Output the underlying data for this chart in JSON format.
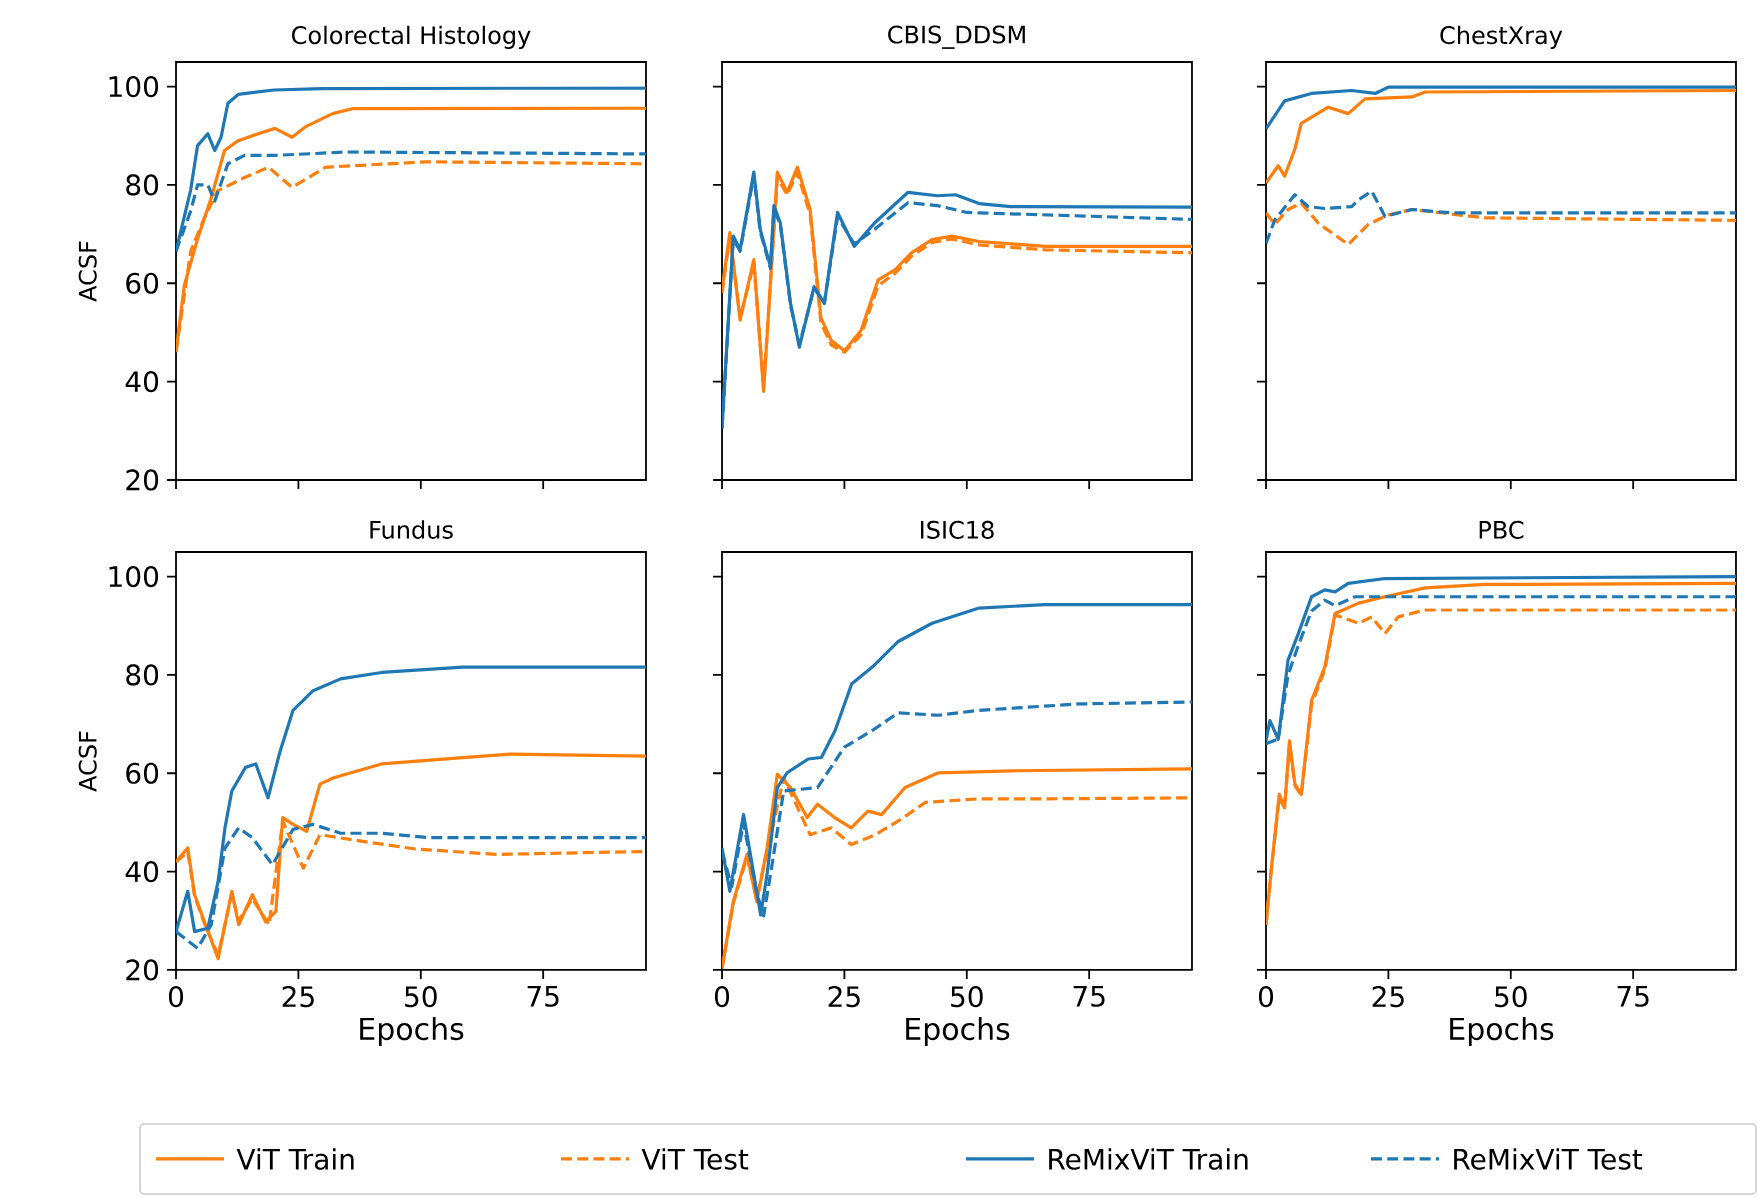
{
  "chart_data": [
    {
      "type": "line",
      "title": "Colorectal Histology",
      "ylabel": "ACSF",
      "xlim": [
        0,
        96
      ],
      "ylim": [
        20,
        105
      ],
      "xticks": [
        0,
        25,
        50,
        75
      ],
      "yticks": [
        20,
        40,
        60,
        80,
        100
      ],
      "tick_labels": "y",
      "legend": "bottom",
      "series": [
        {
          "name": "ViT Train",
          "color": "#ff7f0e",
          "line_style": "solid",
          "x": [
            0,
            1.7,
            4.4,
            7.2,
            9.9,
            12.7,
            16.8,
            20.2,
            23.7,
            26.4,
            32,
            36,
            96
          ],
          "values": [
            46,
            59.6,
            69,
            77.4,
            87,
            89,
            90.4,
            91.5,
            89.7,
            91.8,
            94.5,
            95.5,
            95.6
          ]
        },
        {
          "name": "ViT Test",
          "color": "#ff7f0e",
          "line_style": "dashed",
          "x": [
            0,
            3,
            5.8,
            8.5,
            14,
            18.9,
            23.7,
            30.6,
            51,
            96
          ],
          "values": [
            46,
            66.5,
            73.3,
            78.8,
            81.5,
            83.6,
            79.5,
            83.6,
            84.7,
            84.3
          ]
        },
        {
          "name": "ReMixViT Train",
          "color": "#1f77b4",
          "line_style": "solid",
          "x": [
            0,
            3,
            4.4,
            6.5,
            7.9,
            9.2,
            10.6,
            12.7,
            20,
            30,
            96
          ],
          "values": [
            66.5,
            79,
            88,
            90.4,
            87,
            89.7,
            96.6,
            98.4,
            99.3,
            99.6,
            99.7
          ]
        },
        {
          "name": "ReMixViT Test",
          "color": "#1f77b4",
          "line_style": "dashed",
          "x": [
            0,
            3,
            4.4,
            6.5,
            7.9,
            10.6,
            14,
            20,
            35,
            96
          ],
          "values": [
            66.5,
            74.7,
            80,
            80,
            76.7,
            84.3,
            86,
            86,
            86.7,
            86.3
          ]
        }
      ]
    },
    {
      "type": "line",
      "title": "CBIS_DDSM",
      "xlim": [
        0,
        96
      ],
      "ylim": [
        20,
        105
      ],
      "xticks": [
        0,
        25,
        50,
        75
      ],
      "yticks": [
        20,
        40,
        60,
        80,
        100
      ],
      "tick_labels": false,
      "legend": "bottom",
      "series": [
        {
          "name": "ViT Train",
          "color": "#ff7f0e",
          "line_style": "solid",
          "x": [
            0,
            1.6,
            3.7,
            6.5,
            8.5,
            11.3,
            13.3,
            15.4,
            18,
            20.2,
            22.3,
            25,
            28.4,
            31.9,
            35.3,
            38.7,
            42.9,
            47,
            52.5,
            66,
            96
          ],
          "values": [
            58.6,
            70.3,
            52.5,
            64.8,
            38,
            82.6,
            78.5,
            83.6,
            75,
            53,
            48.4,
            46.3,
            50.4,
            60.7,
            62.7,
            66.2,
            68.9,
            69.6,
            68.5,
            67.5,
            67.5
          ]
        },
        {
          "name": "ViT Test",
          "color": "#ff7f0e",
          "line_style": "dashed",
          "x": [
            0,
            1.6,
            3.7,
            6.5,
            8.5,
            11.3,
            13.3,
            15.4,
            18,
            20.2,
            22.3,
            25,
            28.4,
            31.9,
            35.3,
            38.7,
            42.9,
            47,
            52.5,
            66,
            96
          ],
          "values": [
            58,
            69.5,
            53,
            64,
            39,
            81.5,
            78,
            82.5,
            74,
            52,
            47.5,
            46,
            49.5,
            59.5,
            62,
            65.5,
            68.3,
            69,
            67.8,
            66.8,
            66.2
          ]
        },
        {
          "name": "ReMixViT Train",
          "color": "#1f77b4",
          "line_style": "solid",
          "x": [
            0,
            2.3,
            3.7,
            6.5,
            7.8,
            9.9,
            10.6,
            11.9,
            14,
            15.8,
            18.8,
            20.9,
            23.6,
            27,
            31.2,
            38,
            44,
            47.7,
            52.5,
            59,
            96
          ],
          "values": [
            30.5,
            69.6,
            66.8,
            82.6,
            71,
            63.4,
            75.8,
            72.3,
            55.9,
            47,
            59.3,
            55.9,
            74.4,
            67.5,
            72.3,
            78.5,
            77.8,
            78,
            76.2,
            75.6,
            75.5
          ]
        },
        {
          "name": "ReMixViT Test",
          "color": "#1f77b4",
          "line_style": "dashed",
          "x": [
            0,
            2.3,
            3.7,
            6.5,
            7.8,
            9.9,
            10.6,
            11.9,
            14,
            15.8,
            18.8,
            20.9,
            23.6,
            27,
            31.2,
            38,
            44,
            50,
            96
          ],
          "values": [
            30.5,
            69,
            66.5,
            82,
            70.5,
            63,
            75,
            72,
            55.5,
            47.5,
            59,
            56,
            73.5,
            68,
            71,
            76.4,
            75.8,
            74.4,
            73
          ]
        }
      ]
    },
    {
      "type": "line",
      "title": "ChestXray",
      "xlim": [
        0,
        96
      ],
      "ylim": [
        20,
        105
      ],
      "xticks": [
        0,
        25,
        50,
        75
      ],
      "yticks": [
        20,
        40,
        60,
        80,
        100
      ],
      "tick_labels": false,
      "legend": "bottom",
      "series": [
        {
          "name": "ViT Train",
          "color": "#ff7f0e",
          "line_style": "solid",
          "x": [
            0,
            2.5,
            3.8,
            5.9,
            7.2,
            12.7,
            16.8,
            20.2,
            29.8,
            32.5,
            96
          ],
          "values": [
            80.4,
            83.9,
            81.8,
            87.3,
            92.5,
            95.8,
            94.5,
            97.5,
            97.9,
            98.9,
            99.2
          ]
        },
        {
          "name": "ViT Test",
          "color": "#ff7f0e",
          "line_style": "dashed",
          "x": [
            0,
            1.8,
            4.5,
            7.2,
            10.7,
            16.8,
            20.9,
            25,
            29.8,
            44.8,
            96
          ],
          "values": [
            74.3,
            72,
            75,
            76.3,
            72.2,
            67.9,
            72,
            73.9,
            75,
            73.3,
            72.8
          ]
        },
        {
          "name": "ReMixViT Train",
          "color": "#1f77b4",
          "line_style": "solid",
          "x": [
            0,
            3.8,
            9.3,
            17.5,
            22.3,
            25,
            96
          ],
          "values": [
            91.4,
            97.1,
            98.6,
            99.2,
            98.6,
            99.9,
            99.9
          ]
        },
        {
          "name": "ReMixViT Test",
          "color": "#1f77b4",
          "line_style": "dashed",
          "x": [
            0,
            1.8,
            5.9,
            8.6,
            12,
            17.5,
            18.9,
            21.6,
            24.3,
            29.8,
            38,
            96
          ],
          "values": [
            68.1,
            72.9,
            78,
            75.6,
            75.2,
            75.6,
            77,
            78.7,
            73.6,
            75,
            74.3,
            74.3
          ]
        }
      ]
    },
    {
      "type": "line",
      "title": "Fundus",
      "xlabel": "Epochs",
      "ylabel": "ACSF",
      "xlim": [
        0,
        96
      ],
      "ylim": [
        20,
        105
      ],
      "xticks": [
        0,
        25,
        50,
        75
      ],
      "yticks": [
        20,
        40,
        60,
        80,
        100
      ],
      "legend": "bottom",
      "series": [
        {
          "name": "ViT Train",
          "color": "#ff7f0e",
          "line_style": "solid",
          "x": [
            0,
            2.4,
            3.8,
            5.8,
            8.6,
            11.4,
            12.8,
            15.6,
            18.3,
            20.4,
            21.8,
            23.9,
            26.7,
            29.4,
            32.2,
            42,
            58.6,
            68.3,
            96
          ],
          "values": [
            42,
            44.8,
            35.3,
            29.8,
            22.3,
            36,
            29.2,
            35.3,
            29.8,
            31.9,
            51,
            49.6,
            48.2,
            57.8,
            59.1,
            61.9,
            63.2,
            63.9,
            63.5
          ]
        },
        {
          "name": "ViT Test",
          "color": "#ff7f0e",
          "line_style": "dashed",
          "x": [
            0,
            2.4,
            3.8,
            5.8,
            8.6,
            11.4,
            12.8,
            15.6,
            19,
            21.8,
            26,
            29.4,
            37.8,
            48.9,
            65.6,
            96
          ],
          "values": [
            42,
            44,
            35,
            29.5,
            23,
            35.5,
            30,
            34.5,
            29.2,
            50.3,
            40.7,
            47.5,
            46.2,
            44.6,
            43.5,
            44.1
          ]
        },
        {
          "name": "ReMixViT Train",
          "color": "#1f77b4",
          "line_style": "solid",
          "x": [
            0,
            2.4,
            3.8,
            6.5,
            8.6,
            10,
            11.4,
            14.2,
            16.3,
            18.8,
            21.1,
            23.9,
            28,
            33.6,
            42,
            58.6,
            96
          ],
          "values": [
            27.8,
            36,
            27.8,
            28.5,
            38,
            48.9,
            56.4,
            61.2,
            61.9,
            55,
            63.9,
            72.8,
            76.8,
            79.2,
            80.5,
            81.6,
            81.6
          ]
        },
        {
          "name": "ReMixViT Test",
          "color": "#1f77b4",
          "line_style": "dashed",
          "x": [
            0,
            4.4,
            7.2,
            10,
            12.8,
            15.6,
            19.7,
            23.9,
            28,
            33.6,
            42,
            51.7,
            96
          ],
          "values": [
            27.8,
            24.4,
            29.2,
            44.8,
            48.9,
            46.9,
            41.4,
            48.6,
            49.6,
            47.8,
            47.8,
            46.9,
            46.9
          ]
        }
      ]
    },
    {
      "type": "line",
      "title": "ISIC18",
      "xlabel": "Epochs",
      "xlim": [
        0,
        96
      ],
      "ylim": [
        20,
        105
      ],
      "xticks": [
        0,
        25,
        50,
        75
      ],
      "yticks": [
        20,
        40,
        60,
        80,
        100
      ],
      "tick_labels": "x",
      "legend": "bottom",
      "series": [
        {
          "name": "ViT Train",
          "color": "#ff7f0e",
          "line_style": "solid",
          "x": [
            0,
            2.3,
            5.1,
            7.1,
            9.2,
            11.3,
            14,
            17.4,
            19.5,
            23,
            26.4,
            29.8,
            32.6,
            37.4,
            44.2,
            59.3,
            96
          ],
          "values": [
            20.3,
            33.9,
            43.5,
            33.9,
            44.8,
            59.8,
            57.1,
            51,
            53.7,
            51,
            48.9,
            52.3,
            51.6,
            57.1,
            60.1,
            60.5,
            60.9
          ]
        },
        {
          "name": "ViT Test",
          "color": "#ff7f0e",
          "line_style": "dashed",
          "x": [
            0,
            2.3,
            5.1,
            7.1,
            9.2,
            12.6,
            18,
            22.3,
            26.4,
            31.3,
            36,
            41.6,
            52.5,
            66,
            96
          ],
          "values": [
            20.3,
            33.5,
            43,
            34.5,
            44,
            59.1,
            47.5,
            48.9,
            45.5,
            47.5,
            50.3,
            54.1,
            54.8,
            54.8,
            55
          ]
        },
        {
          "name": "ReMixViT Train",
          "color": "#1f77b4",
          "line_style": "solid",
          "x": [
            0,
            1.6,
            4.4,
            6.5,
            7.9,
            9.2,
            11.3,
            13.3,
            17.6,
            20.3,
            23.1,
            26.5,
            30.7,
            36,
            42.9,
            52.5,
            66,
            96
          ],
          "values": [
            44.8,
            36,
            51.6,
            39.4,
            31.2,
            39.4,
            57.1,
            60.1,
            62.9,
            63.2,
            68.7,
            78.2,
            81.6,
            86.8,
            90.5,
            93.6,
            94.3,
            94.3
          ]
        },
        {
          "name": "ReMixViT Test",
          "color": "#1f77b4",
          "line_style": "dashed",
          "x": [
            0,
            2,
            4.4,
            7,
            8.5,
            10,
            12.6,
            19.5,
            25,
            30.7,
            36,
            44.2,
            52.5,
            73,
            96
          ],
          "values": [
            44,
            37,
            50,
            36,
            31,
            40,
            56.4,
            57.1,
            65.3,
            68.7,
            72.3,
            71.8,
            72.8,
            74.1,
            74.5
          ]
        }
      ]
    },
    {
      "type": "line",
      "title": "PBC",
      "xlabel": "Epochs",
      "xlim": [
        0,
        96
      ],
      "ylim": [
        20,
        105
      ],
      "xticks": [
        0,
        25,
        50,
        75
      ],
      "yticks": [
        20,
        40,
        60,
        80,
        100
      ],
      "tick_labels": "x",
      "legend": "bottom",
      "series": [
        {
          "name": "ViT Train",
          "color": "#ff7f0e",
          "line_style": "solid",
          "x": [
            0,
            1.1,
            2.7,
            3.8,
            4.8,
            5.9,
            7.2,
            9.3,
            12,
            14.1,
            18.9,
            24.3,
            32.5,
            44.8,
            96
          ],
          "values": [
            29.2,
            40.7,
            55.7,
            53,
            66.6,
            57.8,
            55.7,
            74.8,
            81.6,
            92.5,
            94.6,
            95.9,
            97.7,
            98.4,
            98.6
          ]
        },
        {
          "name": "ViT Test",
          "color": "#ff7f0e",
          "line_style": "dashed",
          "x": [
            0,
            1.1,
            2.7,
            3.8,
            4.8,
            5.9,
            7.2,
            9.3,
            12,
            14.1,
            18.9,
            21.6,
            24.3,
            27,
            32.5,
            96
          ],
          "values": [
            29.2,
            40.5,
            55,
            53,
            66,
            57.5,
            55.5,
            74,
            81,
            92.2,
            90.5,
            91.8,
            88.4,
            91.8,
            93.2,
            93.2
          ]
        },
        {
          "name": "ReMixViT Train",
          "color": "#1f77b4",
          "line_style": "solid",
          "x": [
            0,
            0.8,
            2.5,
            4.5,
            6.6,
            9.3,
            12,
            14.1,
            16.8,
            24.3,
            96
          ],
          "values": [
            66.6,
            70.7,
            66.9,
            83,
            88.4,
            95.9,
            97.3,
            96.9,
            98.6,
            99.6,
            100
          ]
        },
        {
          "name": "ReMixViT Test",
          "color": "#1f77b4",
          "line_style": "dashed",
          "x": [
            0,
            2.5,
            4.5,
            6.6,
            9.3,
            12,
            14.1,
            18.2,
            96
          ],
          "values": [
            66,
            67,
            80,
            86,
            93,
            95.2,
            94.1,
            95.9,
            95.9
          ]
        }
      ]
    }
  ]
}
